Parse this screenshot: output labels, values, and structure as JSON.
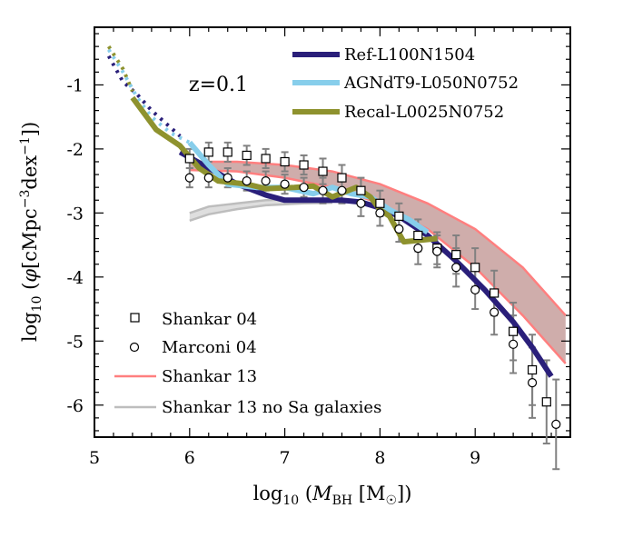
{
  "chart_data": {
    "type": "line",
    "xlabel": "log₁₀ (M_BH [M☉])",
    "ylabel": "log₁₀ (φ[cMpc⁻³dex⁻¹])",
    "xlabel_parts": {
      "prefix": "log",
      "sub": "10",
      "open": " (",
      "sym": "M",
      "symsub": "BH",
      "unit": " [M",
      "sun": "☉",
      "close": "])"
    },
    "ylabel_parts": {
      "prefix": "log",
      "sub": "10",
      "open": " (",
      "sym": "φ",
      "unit": "[cMpc",
      "exp1": "−3",
      "mid": "dex",
      "exp2": "−1",
      "close": "])"
    },
    "annotation": "z=0.1",
    "xlim": [
      5.0,
      10.0
    ],
    "ylim": [
      -6.5,
      -0.1
    ],
    "xticks": [
      "5",
      "6",
      "7",
      "8",
      "9"
    ],
    "yticks": [
      "-1",
      "-2",
      "-3",
      "-4",
      "-5",
      "-6"
    ],
    "series": [
      {
        "name": "Ref-L100N1504",
        "color": "#2a1f7a",
        "dotted": {
          "x": [
            5.15,
            5.3,
            5.45,
            5.6,
            5.75,
            5.9
          ],
          "y": [
            -0.55,
            -0.95,
            -1.15,
            -1.4,
            -1.6,
            -1.8
          ]
        },
        "x": [
          5.9,
          6.2,
          6.5,
          6.8,
          7.0,
          7.3,
          7.6,
          7.8,
          8.0,
          8.2,
          8.5,
          8.8,
          9.1,
          9.4,
          9.6,
          9.8
        ],
        "y": [
          -2.05,
          -2.3,
          -2.55,
          -2.72,
          -2.8,
          -2.8,
          -2.8,
          -2.83,
          -2.92,
          -3.05,
          -3.35,
          -3.75,
          -4.2,
          -4.7,
          -5.1,
          -5.55
        ]
      },
      {
        "name": "AGNdT9-L050N0752",
        "color": "#87ceeb",
        "dotted": {
          "x": [
            5.15,
            5.3,
            5.45,
            5.6,
            5.8,
            6.0
          ],
          "y": [
            -0.45,
            -0.8,
            -1.2,
            -1.5,
            -1.75,
            -1.9
          ]
        },
        "x": [
          6.0,
          6.2,
          6.4,
          6.7,
          7.0,
          7.3,
          7.5,
          7.7,
          7.9,
          8.1,
          8.3,
          8.5
        ],
        "y": [
          -1.9,
          -2.25,
          -2.55,
          -2.6,
          -2.6,
          -2.7,
          -2.6,
          -2.7,
          -2.75,
          -2.95,
          -3.1,
          -3.3
        ]
      },
      {
        "name": "Recal-L0025N0752",
        "color": "#8e922e",
        "dotted": {
          "x": [
            5.15,
            5.3,
            5.4
          ],
          "y": [
            -0.4,
            -0.75,
            -1.1
          ]
        },
        "x": [
          5.4,
          5.65,
          5.9,
          6.1,
          6.3,
          6.6,
          6.8,
          7.1,
          7.3,
          7.5,
          7.75,
          7.9,
          8.0,
          8.1,
          8.25,
          8.6
        ],
        "y": [
          -1.2,
          -1.7,
          -1.95,
          -2.3,
          -2.5,
          -2.55,
          -2.62,
          -2.6,
          -2.58,
          -2.75,
          -2.6,
          -2.75,
          -2.95,
          -3.05,
          -3.45,
          -3.4
        ]
      }
    ],
    "bands": [
      {
        "name": "Shankar 13",
        "color": "#ff7f7f",
        "fill": "#a86a66",
        "x": [
          6.0,
          6.5,
          7.0,
          7.5,
          8.0,
          8.5,
          9.0,
          9.5,
          9.95
        ],
        "upper": [
          -2.2,
          -2.2,
          -2.25,
          -2.35,
          -2.55,
          -2.85,
          -3.25,
          -3.85,
          -4.6
        ],
        "lower": [
          -2.33,
          -2.35,
          -2.45,
          -2.6,
          -2.85,
          -3.25,
          -3.85,
          -4.6,
          -5.35
        ]
      },
      {
        "name": "Shankar 13 no Sa galaxies",
        "color": "#bdbdbd",
        "fill": "#d0d0d0",
        "x": [
          6.0,
          6.2,
          6.5,
          6.8,
          7.2,
          7.5
        ],
        "upper": [
          -3.0,
          -2.9,
          -2.85,
          -2.8,
          -2.78,
          -2.78
        ],
        "lower": [
          -3.12,
          -3.02,
          -2.94,
          -2.88,
          -2.85,
          -2.84
        ]
      }
    ],
    "scatter": [
      {
        "name": "Shankar 04",
        "marker": "square",
        "x": [
          6.0,
          6.2,
          6.4,
          6.6,
          6.8,
          7.0,
          7.2,
          7.4,
          7.6,
          7.8,
          8.0,
          8.2,
          8.4,
          8.6,
          8.8,
          9.0,
          9.2,
          9.4,
          9.6,
          9.75
        ],
        "y": [
          -2.15,
          -2.05,
          -2.05,
          -2.1,
          -2.15,
          -2.2,
          -2.25,
          -2.35,
          -2.45,
          -2.65,
          -2.85,
          -3.05,
          -3.35,
          -3.55,
          -3.65,
          -3.85,
          -4.25,
          -4.85,
          -5.45,
          -5.95
        ],
        "err": [
          0.15,
          0.15,
          0.15,
          0.15,
          0.15,
          0.15,
          0.15,
          0.2,
          0.2,
          0.2,
          0.2,
          0.2,
          0.25,
          0.25,
          0.3,
          0.3,
          0.35,
          0.45,
          0.55,
          0.65
        ]
      },
      {
        "name": "Marconi 04",
        "marker": "circle",
        "x": [
          6.0,
          6.2,
          6.4,
          6.6,
          6.8,
          7.0,
          7.2,
          7.4,
          7.6,
          7.8,
          8.0,
          8.2,
          8.4,
          8.6,
          8.8,
          9.0,
          9.2,
          9.4,
          9.6,
          9.85
        ],
        "y": [
          -2.45,
          -2.45,
          -2.45,
          -2.5,
          -2.5,
          -2.55,
          -2.6,
          -2.65,
          -2.65,
          -2.85,
          -3.0,
          -3.25,
          -3.55,
          -3.6,
          -3.85,
          -4.2,
          -4.55,
          -5.05,
          -5.65,
          -6.3
        ],
        "err": [
          0.15,
          0.15,
          0.15,
          0.15,
          0.15,
          0.15,
          0.15,
          0.2,
          0.2,
          0.2,
          0.2,
          0.2,
          0.25,
          0.25,
          0.3,
          0.3,
          0.35,
          0.45,
          0.55,
          0.7
        ]
      }
    ],
    "legend_top": [
      "Ref-L100N1504",
      "AGNdT9-L050N0752",
      "Recal-L0025N0752"
    ],
    "legend_bottom": [
      "Shankar 04",
      "Marconi 04",
      "Shankar 13",
      "Shankar 13 no Sa galaxies"
    ],
    "colors": {
      "errorbar": "#808080",
      "axis": "#000000"
    }
  }
}
